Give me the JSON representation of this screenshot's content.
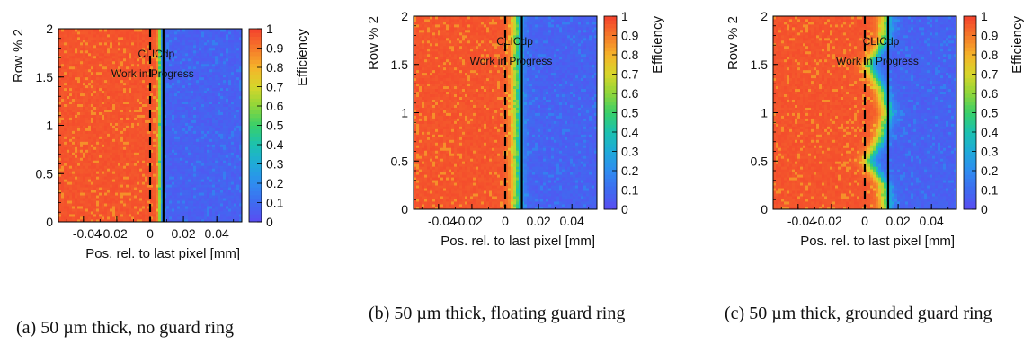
{
  "figure": {
    "axis_xlabel": "Pos. rel. to last pixel [mm]",
    "axis_ylabel": "Row % 2",
    "z_label": "Efficiency",
    "overlay_line1": "CLICdp",
    "overlay_line2": "Work in Progress",
    "x_tick_labels": [
      "-0.04",
      "-0.02",
      "0",
      "0.02",
      "0.04"
    ],
    "y_tick_labels": [
      "0",
      "0.5",
      "1",
      "1.5",
      "2"
    ],
    "z_tick_labels": [
      "0",
      "0.1",
      "0.2",
      "0.3",
      "0.4",
      "0.5",
      "0.6",
      "0.7",
      "0.8",
      "0.9",
      "1"
    ],
    "colors": {
      "high": "#f4412d",
      "low": "#5b4cf2"
    }
  },
  "captions": [
    "(a) 50 µm thick, no guard ring",
    "(b) 50 µm thick, floating guard ring",
    "(c) 50 µm thick, grounded guard ring"
  ],
  "chart_data": [
    {
      "type": "heatmap",
      "xlabel": "Pos. rel. to last pixel [mm]",
      "ylabel": "Row % 2",
      "zlabel": "Efficiency",
      "xlim": [
        -0.055,
        0.055
      ],
      "ylim": [
        0,
        2
      ],
      "zlim": [
        0,
        1
      ],
      "reference_lines_x": [
        0,
        0.008
      ],
      "transition_x_by_row": [
        [
          0,
          0.006
        ],
        [
          2,
          0.006
        ]
      ],
      "transition_width_mm": 0.002,
      "efficiency_left": 0.98,
      "efficiency_right": 0.08
    },
    {
      "type": "heatmap",
      "xlabel": "Pos. rel. to last pixel [mm]",
      "ylabel": "Row % 2",
      "zlabel": "Efficiency",
      "xlim": [
        -0.055,
        0.055
      ],
      "ylim": [
        0,
        2
      ],
      "zlim": [
        0,
        1
      ],
      "reference_lines_x": [
        0,
        0.01
      ],
      "transition_x_by_row": [
        [
          0,
          0.007
        ],
        [
          2,
          0.007
        ]
      ],
      "transition_width_mm": 0.005,
      "efficiency_left": 0.98,
      "efficiency_right": 0.08
    },
    {
      "type": "heatmap",
      "xlabel": "Pos. rel. to last pixel [mm]",
      "ylabel": "Row % 2",
      "zlabel": "Efficiency",
      "xlim": [
        -0.055,
        0.055
      ],
      "ylim": [
        0,
        2
      ],
      "zlim": [
        0,
        1
      ],
      "reference_lines_x": [
        0,
        0.014
      ],
      "transition_x_by_row": [
        [
          0,
          0.013
        ],
        [
          0.25,
          0.012
        ],
        [
          0.5,
          0.002
        ],
        [
          0.75,
          0.01
        ],
        [
          1,
          0.014
        ],
        [
          1.25,
          0.01
        ],
        [
          1.5,
          0.002
        ],
        [
          1.75,
          0.012
        ],
        [
          2,
          0.013
        ]
      ],
      "transition_width_mm": 0.006,
      "efficiency_left": 0.98,
      "efficiency_right": 0.08
    }
  ]
}
